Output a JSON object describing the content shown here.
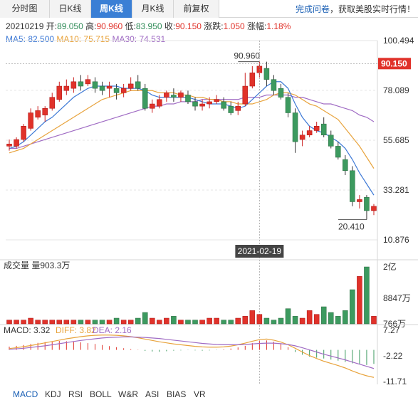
{
  "tabs": [
    {
      "label": "分时图",
      "active": false
    },
    {
      "label": "日K线",
      "active": false
    },
    {
      "label": "周K线",
      "active": true
    },
    {
      "label": "月K线",
      "active": false
    },
    {
      "label": "前复权",
      "active": false
    }
  ],
  "promo": {
    "link": "完成问卷",
    "text": "，获取美股实时行情！"
  },
  "info": {
    "date": "20210219",
    "open_label": "开:",
    "open": "89.050",
    "high_label": "高:",
    "high": "90.960",
    "low_label": "低:",
    "low": "83.950",
    "close_label": "收:",
    "close": "90.150",
    "change_label": "涨跌:",
    "change": "1.050",
    "pct_label": "涨幅:",
    "pct": "1.18%"
  },
  "ma": {
    "ma5": "MA5: 82.500",
    "ma10": "MA10: 75.715",
    "ma30": "MA30: 74.531",
    "ma5_color": "#3d79d6",
    "ma10_color": "#e8a33c",
    "ma30_color": "#a06cc4"
  },
  "colors": {
    "up": "#e0322a",
    "down": "#3c9a5f",
    "price_tag": "#e0322a"
  },
  "chart_data": {
    "type": "candlestick",
    "price_axis_labels": [
      "100.494",
      "78.089",
      "55.685",
      "33.281",
      "10.876"
    ],
    "price_axis": [
      100.494,
      78.089,
      55.685,
      33.281,
      10.876
    ],
    "current_price_tag": "90.150",
    "max_annotation": "90.960",
    "min_annotation": "20.410",
    "crosshair_date": "2021-02-19",
    "candles": [
      [
        53,
        54,
        51,
        56
      ],
      [
        53,
        56,
        52,
        57
      ],
      [
        56,
        62,
        55,
        63
      ],
      [
        61,
        68,
        60,
        70
      ],
      [
        66,
        69,
        65,
        71
      ],
      [
        67,
        70,
        64,
        71
      ],
      [
        70,
        75,
        69,
        77
      ],
      [
        74,
        80,
        73,
        82
      ],
      [
        78,
        80,
        76,
        83
      ],
      [
        79,
        82,
        77,
        84
      ],
      [
        82,
        80,
        78,
        85
      ],
      [
        81,
        83,
        80,
        85
      ],
      [
        82,
        79,
        77,
        84
      ],
      [
        80,
        78,
        76,
        82
      ],
      [
        79,
        80,
        75,
        82
      ],
      [
        79,
        77,
        74,
        81
      ],
      [
        77,
        79,
        75,
        81
      ],
      [
        79,
        81,
        78,
        84
      ],
      [
        82,
        79,
        78,
        85
      ],
      [
        79,
        70,
        69,
        81
      ],
      [
        70,
        72,
        68,
        74
      ],
      [
        71,
        74,
        70,
        76
      ],
      [
        75,
        77,
        73,
        78
      ],
      [
        76,
        75,
        73,
        79
      ],
      [
        75,
        77,
        73,
        78
      ],
      [
        76,
        73,
        72,
        78
      ],
      [
        73,
        71,
        69,
        75
      ],
      [
        71,
        72,
        69,
        74
      ],
      [
        72,
        73,
        70,
        75
      ],
      [
        73,
        74,
        72,
        76
      ],
      [
        73,
        70,
        69,
        75
      ],
      [
        71,
        68,
        67,
        73
      ],
      [
        69,
        71,
        67,
        73
      ],
      [
        72,
        80,
        71,
        86
      ],
      [
        80,
        86,
        79,
        89
      ],
      [
        86,
        89,
        84,
        91
      ],
      [
        88,
        83,
        80,
        91
      ],
      [
        83,
        78,
        76,
        85
      ],
      [
        79,
        75,
        74,
        81
      ],
      [
        75,
        68,
        66,
        77
      ],
      [
        68,
        55,
        50,
        70
      ],
      [
        56,
        58,
        53,
        60
      ],
      [
        58,
        60,
        57,
        62
      ],
      [
        60,
        62,
        59,
        64
      ],
      [
        63,
        58,
        57,
        66
      ],
      [
        58,
        53,
        52,
        60
      ],
      [
        53,
        48,
        47,
        55
      ],
      [
        47,
        42,
        40,
        49
      ],
      [
        42,
        28,
        26,
        44
      ],
      [
        28,
        29,
        25,
        31
      ],
      [
        30,
        24,
        20,
        31
      ],
      [
        24,
        26,
        22,
        27
      ]
    ],
    "ma5": [
      52,
      53,
      55,
      58,
      61,
      64,
      66,
      69,
      72,
      75,
      77,
      79,
      80,
      80,
      80,
      80,
      79,
      79,
      79,
      78,
      76,
      75,
      75,
      75,
      75,
      75,
      74,
      73,
      72,
      72,
      72,
      71,
      70,
      71,
      74,
      77,
      80,
      82,
      82,
      79,
      72,
      66,
      62,
      60,
      59,
      57,
      55,
      52,
      47,
      41,
      36,
      31
    ],
    "ma10": [
      50,
      51,
      52,
      54,
      56,
      58,
      60,
      62,
      64,
      66,
      68,
      70,
      72,
      74,
      75,
      76,
      77,
      78,
      78,
      78,
      78,
      77,
      77,
      77,
      76,
      76,
      75,
      75,
      74,
      74,
      73,
      73,
      72,
      72,
      72,
      73,
      74,
      76,
      77,
      77,
      76,
      74,
      72,
      71,
      69,
      67,
      65,
      61,
      57,
      53,
      48,
      43
    ],
    "ma30": [
      52,
      52,
      53,
      54,
      55,
      56,
      57,
      58,
      59,
      60,
      61,
      62,
      63,
      64,
      65,
      66,
      67,
      68,
      69,
      70,
      71,
      71,
      72,
      72,
      73,
      73,
      73,
      74,
      74,
      74,
      74,
      74,
      74,
      75,
      75,
      75,
      76,
      76,
      76,
      76,
      75,
      75,
      74,
      73,
      72,
      72,
      71,
      70,
      69,
      67,
      66,
      64
    ],
    "volume_label": "成交量 量903.3万",
    "volume_axis_labels": [
      "2亿",
      "8847万",
      "766万"
    ],
    "volumes": [
      2,
      2,
      2,
      3,
      2,
      2,
      2,
      2,
      2,
      2,
      2,
      2,
      2,
      2,
      2,
      3,
      2,
      2,
      3,
      6,
      3,
      2,
      3,
      4,
      2,
      2,
      2,
      2,
      3,
      3,
      2,
      2,
      3,
      4,
      7,
      5,
      3,
      2,
      3,
      8,
      4,
      3,
      7,
      5,
      9,
      6,
      4,
      7,
      18,
      25,
      30,
      4
    ],
    "macd_label": "MACD: 3.32",
    "diff_label": "DIFF: 3.82",
    "dea_label": "DEA: 2.16",
    "macd_axis_labels": [
      "7.27",
      "-2.22",
      "-11.71"
    ],
    "macd_axis": [
      7.27,
      -2.22,
      -11.71
    ],
    "macd_hist": [
      1.2,
      1.5,
      1.8,
      2.2,
      2.6,
      2.9,
      3.1,
      3.3,
      3.2,
      3.0,
      2.8,
      2.5,
      2.2,
      1.8,
      1.4,
      1.0,
      0.6,
      0.3,
      0.1,
      -0.4,
      -0.6,
      -0.7,
      -0.5,
      -0.3,
      -0.2,
      -0.1,
      -0.2,
      -0.3,
      -0.2,
      -0.1,
      0.2,
      0.5,
      0.9,
      1.5,
      2.5,
      3.3,
      3.5,
      3.0,
      2.2,
      1.0,
      -0.8,
      -1.8,
      -2.5,
      -2.9,
      -3.2,
      -3.6,
      -4.0,
      -4.5,
      -5.0,
      -5.4,
      -5.6,
      -5.2
    ],
    "diff_line": [
      0.5,
      0.8,
      1.2,
      1.6,
      2.1,
      2.6,
      3.1,
      3.6,
      4.1,
      4.5,
      4.9,
      5.2,
      5.4,
      5.5,
      5.5,
      5.4,
      5.2,
      4.9,
      4.5,
      4.0,
      3.5,
      3.0,
      2.6,
      2.2,
      1.9,
      1.6,
      1.3,
      1.1,
      1.0,
      1.0,
      1.1,
      1.4,
      1.9,
      2.5,
      3.2,
      3.8,
      4.0,
      3.6,
      2.9,
      1.9,
      0.6,
      -0.8,
      -2.1,
      -3.2,
      -4.2,
      -5.0,
      -5.8,
      -6.7,
      -7.8,
      -8.8,
      -9.6,
      -10.2
    ],
    "dea_line": [
      0.2,
      0.4,
      0.6,
      0.9,
      1.2,
      1.5,
      1.9,
      2.3,
      2.7,
      3.1,
      3.5,
      3.8,
      4.1,
      4.4,
      4.6,
      4.7,
      4.8,
      4.8,
      4.7,
      4.6,
      4.4,
      4.2,
      3.9,
      3.6,
      3.3,
      3.0,
      2.7,
      2.4,
      2.2,
      2.0,
      1.9,
      1.9,
      1.9,
      2.0,
      2.2,
      2.4,
      2.5,
      2.5,
      2.3,
      2.0,
      1.5,
      0.8,
      0.0,
      -0.8,
      -1.6,
      -2.3,
      -3.0,
      -3.7,
      -4.5,
      -5.3,
      -6.1,
      -6.9
    ]
  },
  "indicator_tabs": [
    {
      "label": "MACD",
      "active": true
    },
    {
      "label": "KDJ",
      "active": false
    },
    {
      "label": "RSI",
      "active": false
    },
    {
      "label": "BOLL",
      "active": false
    },
    {
      "label": "W&R",
      "active": false
    },
    {
      "label": "ASI",
      "active": false
    },
    {
      "label": "BIAS",
      "active": false
    },
    {
      "label": "VR",
      "active": false
    }
  ]
}
